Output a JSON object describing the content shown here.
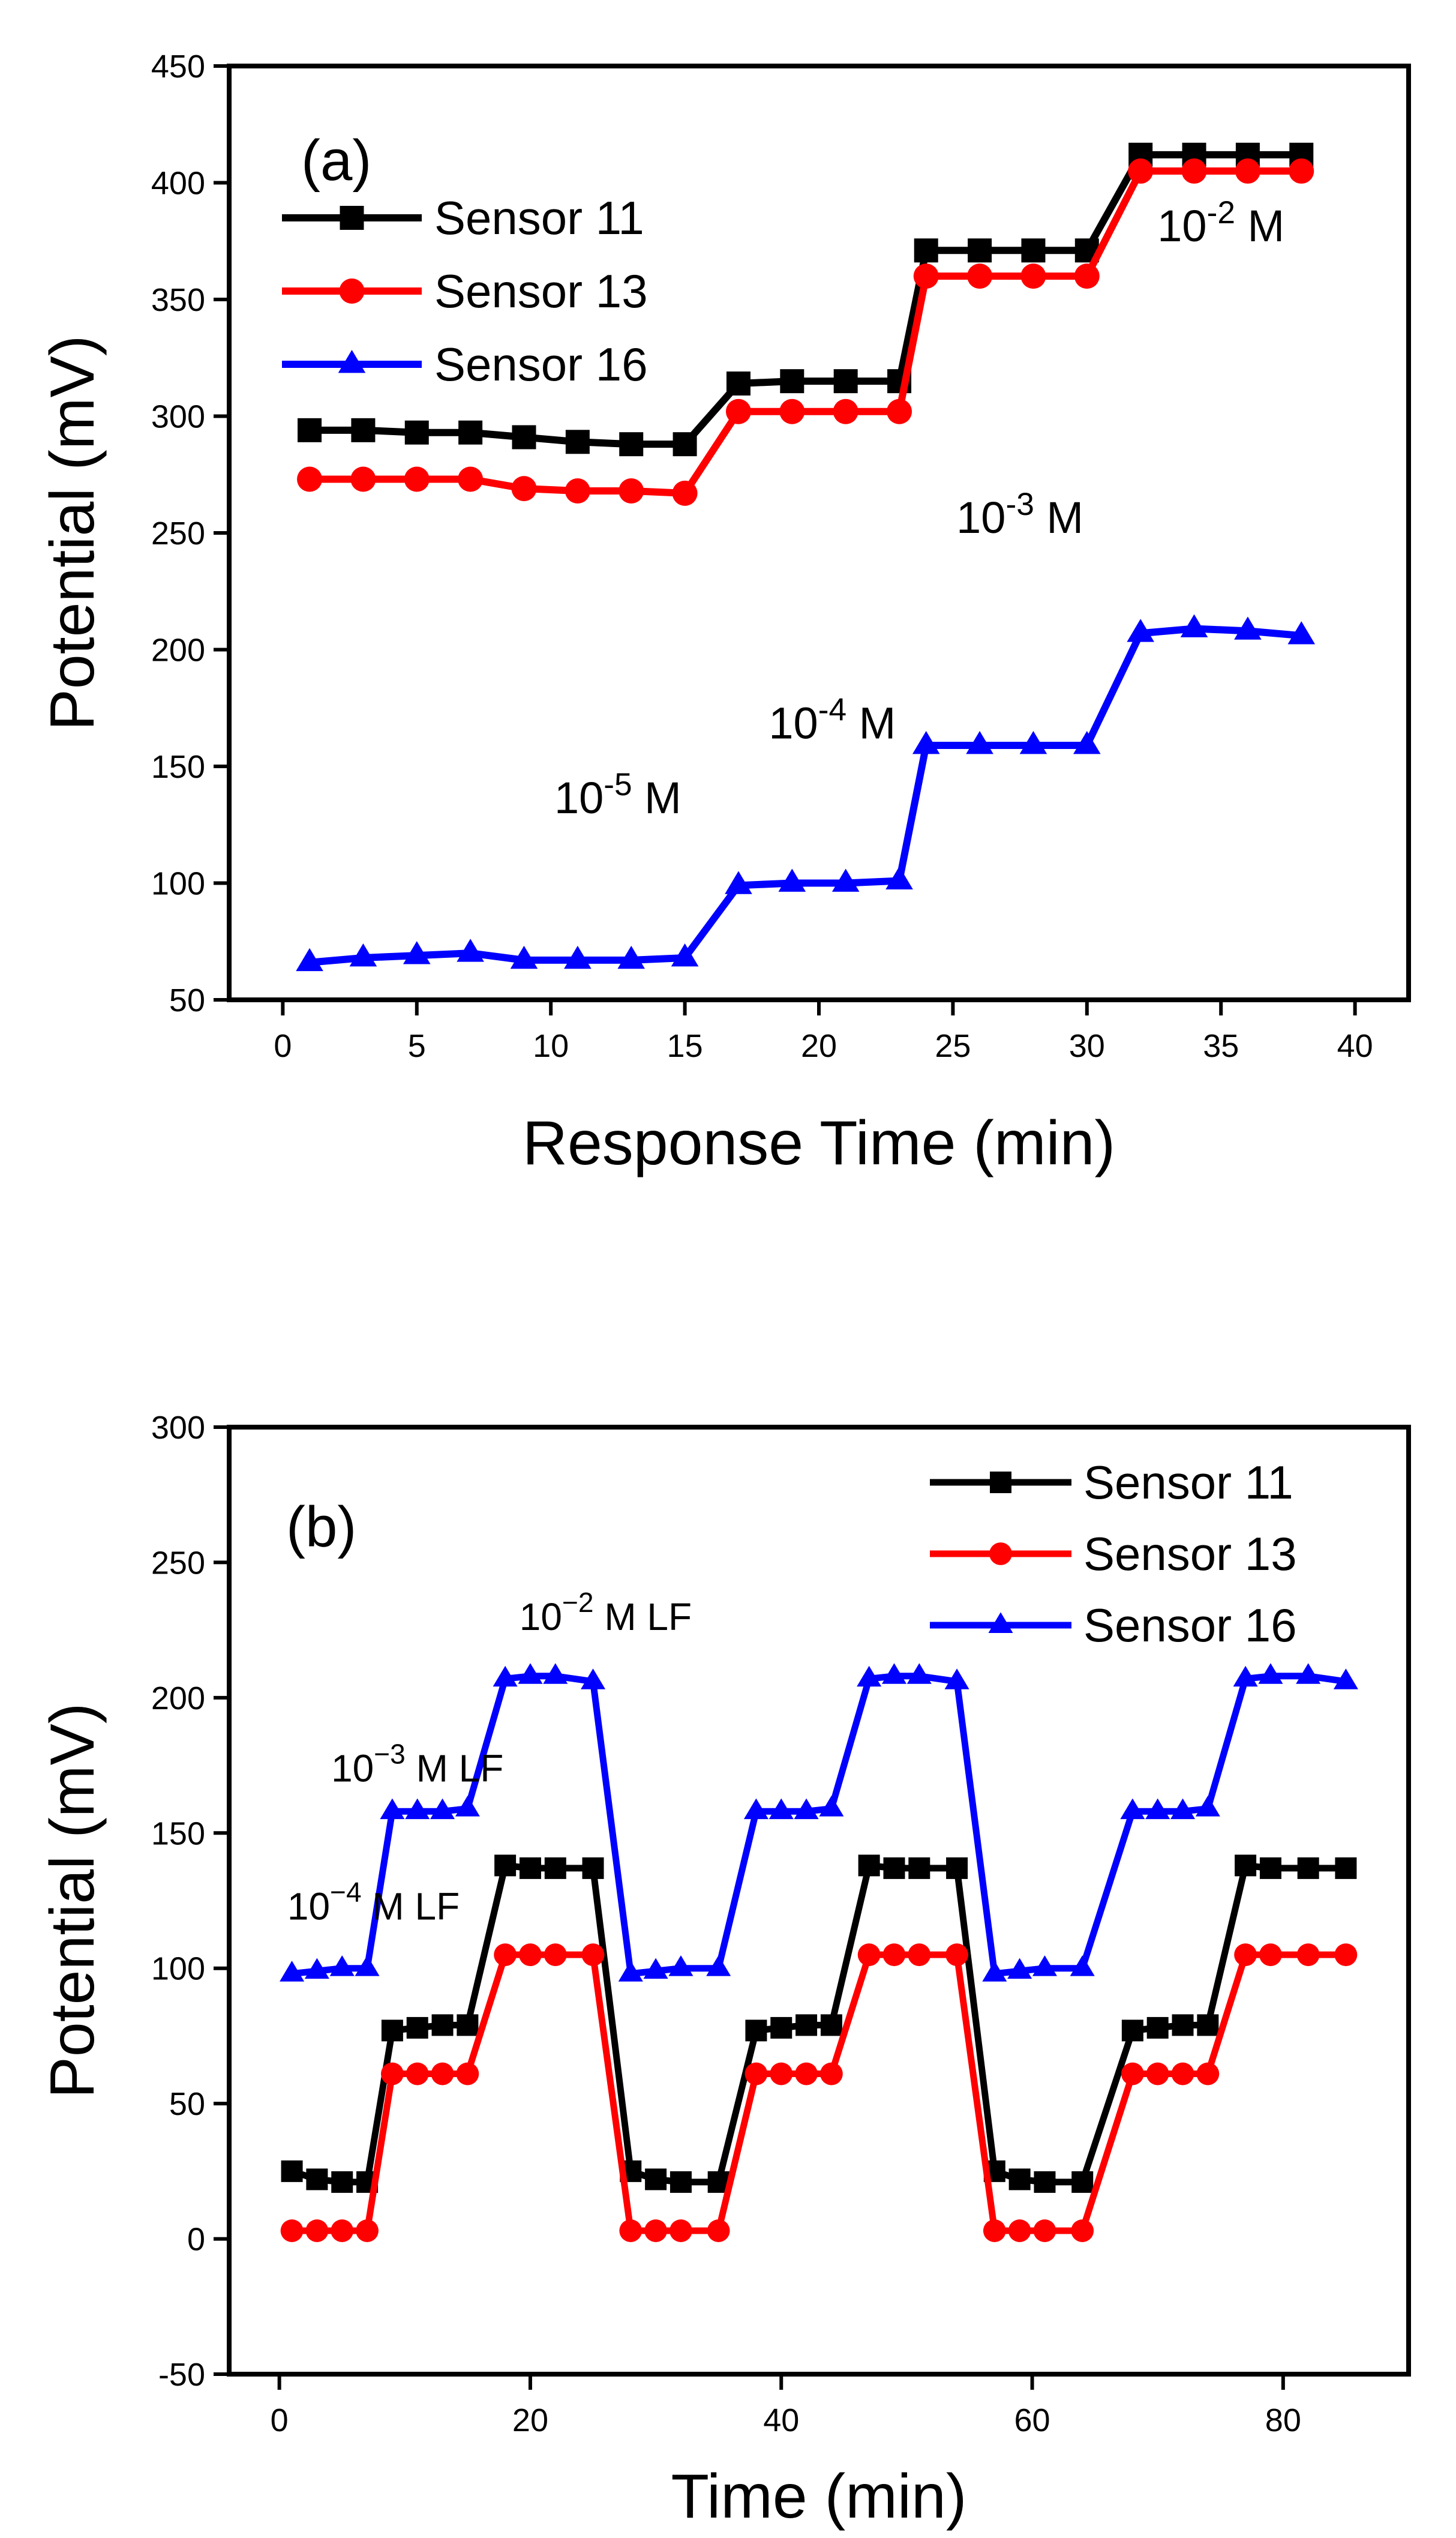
{
  "chart_data": [
    {
      "type": "line",
      "panel_label": "(a)",
      "title": "",
      "xlabel": "Response Time (min)",
      "ylabel": "Potential (mV)",
      "xlim": [
        -2,
        42
      ],
      "ylim": [
        50,
        450
      ],
      "xticks": [
        0,
        5,
        10,
        15,
        20,
        25,
        30,
        35,
        40
      ],
      "yticks": [
        50,
        100,
        150,
        200,
        250,
        300,
        350,
        400,
        450
      ],
      "legend_position": "top-left",
      "series": [
        {
          "name": "Sensor 11",
          "color": "#000000",
          "marker": "square",
          "x": [
            1,
            3,
            5,
            7,
            9,
            11,
            13,
            15,
            17,
            19,
            21,
            23,
            24,
            26,
            28,
            30,
            32,
            34,
            36,
            38
          ],
          "y": [
            294,
            294,
            293,
            293,
            291,
            289,
            288,
            288,
            314,
            315,
            315,
            315,
            371,
            371,
            371,
            371,
            412,
            412,
            412,
            412
          ]
        },
        {
          "name": "Sensor 13",
          "color": "#ff0000",
          "marker": "circle",
          "x": [
            1,
            3,
            5,
            7,
            9,
            11,
            13,
            15,
            17,
            19,
            21,
            23,
            24,
            26,
            28,
            30,
            32,
            34,
            36,
            38
          ],
          "y": [
            273,
            273,
            273,
            273,
            269,
            268,
            268,
            267,
            302,
            302,
            302,
            302,
            360,
            360,
            360,
            360,
            405,
            405,
            405,
            405
          ]
        },
        {
          "name": "Sensor 16",
          "color": "#0000ff",
          "marker": "triangle",
          "x": [
            1,
            3,
            5,
            7,
            9,
            11,
            13,
            15,
            17,
            19,
            21,
            23,
            24,
            26,
            28,
            30,
            32,
            34,
            36,
            38
          ],
          "y": [
            66,
            68,
            69,
            70,
            67,
            67,
            67,
            68,
            99,
            100,
            100,
            101,
            159,
            159,
            159,
            159,
            207,
            209,
            208,
            206
          ]
        }
      ],
      "annotations": [
        {
          "base": "10",
          "exp": "-5",
          "unit": " M",
          "x": 12.5,
          "y": 130
        },
        {
          "base": "10",
          "exp": "-4",
          "unit": " M",
          "x": 20.5,
          "y": 162
        },
        {
          "base": "10",
          "exp": "-3",
          "unit": " M",
          "x": 27.5,
          "y": 250
        },
        {
          "base": "10",
          "exp": "-2",
          "unit": " M",
          "x": 35,
          "y": 375
        }
      ]
    },
    {
      "type": "line",
      "panel_label": "(b)",
      "title": "",
      "xlabel": "Time (min)",
      "ylabel": "Potential (mV)",
      "xlim": [
        -4,
        90
      ],
      "ylim": [
        -50,
        300
      ],
      "xticks": [
        0,
        20,
        40,
        60,
        80
      ],
      "yticks": [
        -50,
        0,
        50,
        100,
        150,
        200,
        250,
        300
      ],
      "legend_position": "top-right",
      "series": [
        {
          "name": "Sensor 11",
          "color": "#000000",
          "marker": "square",
          "x": [
            1,
            3,
            5,
            7,
            9,
            11,
            13,
            15,
            18,
            20,
            22,
            25,
            28,
            30,
            32,
            35,
            38,
            40,
            42,
            44,
            47,
            49,
            51,
            54,
            57,
            59,
            61,
            64,
            68,
            70,
            72,
            74,
            77,
            79,
            82,
            85
          ],
          "y": [
            25,
            22,
            21,
            21,
            77,
            78,
            79,
            79,
            138,
            137,
            137,
            137,
            25,
            22,
            21,
            21,
            77,
            78,
            79,
            79,
            138,
            137,
            137,
            137,
            25,
            22,
            21,
            21,
            77,
            78,
            79,
            79,
            138,
            137,
            137,
            137
          ]
        },
        {
          "name": "Sensor 13",
          "color": "#ff0000",
          "marker": "circle",
          "x": [
            1,
            3,
            5,
            7,
            9,
            11,
            13,
            15,
            18,
            20,
            22,
            25,
            28,
            30,
            32,
            35,
            38,
            40,
            42,
            44,
            47,
            49,
            51,
            54,
            57,
            59,
            61,
            64,
            68,
            70,
            72,
            74,
            77,
            79,
            82,
            85
          ],
          "y": [
            3,
            3,
            3,
            3,
            61,
            61,
            61,
            61,
            105,
            105,
            105,
            105,
            3,
            3,
            3,
            3,
            61,
            61,
            61,
            61,
            105,
            105,
            105,
            105,
            3,
            3,
            3,
            3,
            61,
            61,
            61,
            61,
            105,
            105,
            105,
            105
          ]
        },
        {
          "name": "Sensor 16",
          "color": "#0000ff",
          "marker": "triangle",
          "x": [
            1,
            3,
            5,
            7,
            9,
            11,
            13,
            15,
            18,
            20,
            22,
            25,
            28,
            30,
            32,
            35,
            38,
            40,
            42,
            44,
            47,
            49,
            51,
            54,
            57,
            59,
            61,
            64,
            68,
            70,
            72,
            74,
            77,
            79,
            82,
            85
          ],
          "y": [
            98,
            99,
            100,
            100,
            158,
            158,
            158,
            159,
            207,
            208,
            208,
            206,
            98,
            99,
            100,
            100,
            158,
            158,
            158,
            159,
            207,
            208,
            208,
            206,
            98,
            99,
            100,
            100,
            158,
            158,
            158,
            159,
            207,
            208,
            208,
            206
          ]
        }
      ],
      "annotations": [
        {
          "base": "10",
          "exp": "−4",
          "unit": " M LF",
          "x": 7.5,
          "y": 118
        },
        {
          "base": "10",
          "exp": "−3",
          "unit": " M LF",
          "x": 11,
          "y": 169
        },
        {
          "base": "10",
          "exp": "−2",
          "unit": " M LF",
          "x": 26,
          "y": 225
        }
      ]
    }
  ]
}
